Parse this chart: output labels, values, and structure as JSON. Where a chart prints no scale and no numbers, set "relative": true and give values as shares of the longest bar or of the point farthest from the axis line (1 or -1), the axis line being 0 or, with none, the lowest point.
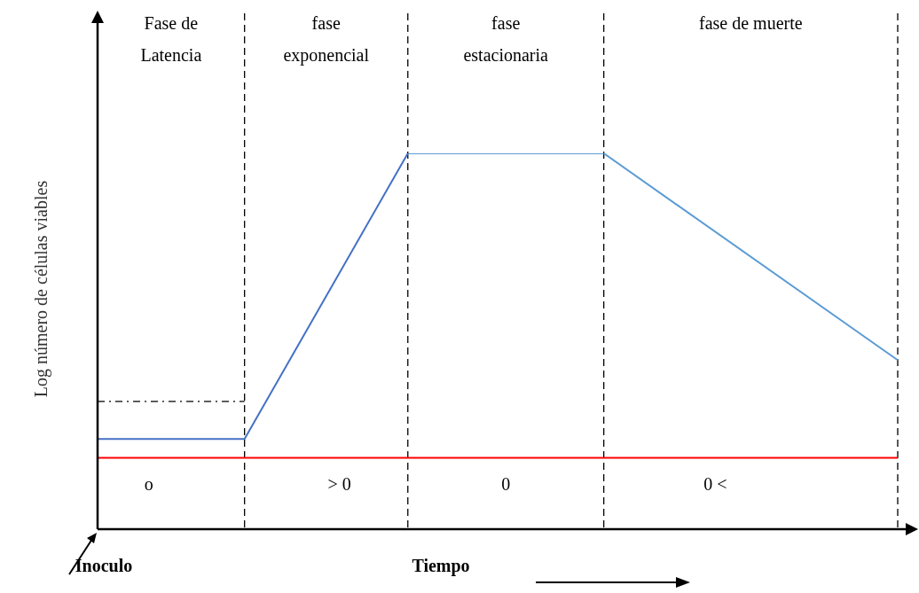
{
  "chart_data": {
    "type": "line",
    "relative": true,
    "tick_labels": false,
    "xlabel": "Tiempo",
    "ylabel": "Log número de células viables",
    "categories": [
      null,
      null,
      null,
      null,
      null,
      null,
      null,
      null,
      null,
      null,
      null,
      null,
      null,
      null,
      null,
      null,
      null,
      null,
      null,
      null,
      null,
      null,
      null,
      null,
      null,
      null,
      null,
      null,
      null,
      null,
      null,
      null,
      null,
      null,
      null,
      null,
      null,
      null,
      null,
      null,
      null,
      null,
      null,
      null,
      null,
      null,
      null,
      null,
      null,
      null
    ],
    "series": [
      {
        "values": [
          0.24,
          null,
          null,
          null,
          null,
          null,
          null,
          null,
          null,
          0.24,
          null,
          null,
          null,
          null,
          null,
          null,
          null,
          null,
          null,
          1,
          null,
          null,
          null,
          null,
          null,
          null,
          null,
          null,
          null,
          null,
          null,
          null,
          null,
          null,
          null,
          null,
          null,
          null,
          null,
          null,
          null,
          null,
          null,
          null,
          null,
          null,
          null,
          null,
          null,
          null
        ],
        "color": "#4472c4"
      },
      {
        "values": [
          null,
          null,
          null,
          null,
          null,
          null,
          null,
          null,
          null,
          null,
          null,
          null,
          null,
          null,
          null,
          null,
          null,
          null,
          null,
          1,
          null,
          null,
          null,
          null,
          null,
          null,
          null,
          null,
          null,
          null,
          null,
          1,
          null,
          null,
          null,
          null,
          null,
          null,
          null,
          null,
          null,
          null,
          null,
          null,
          null,
          null,
          null,
          null,
          null,
          0.45
        ],
        "color": "#5b9bd5"
      },
      {
        "values": [
          0.34,
          null,
          null,
          null,
          null,
          null,
          null,
          null,
          null,
          0.34,
          null,
          null,
          null,
          null,
          null,
          null,
          null,
          null,
          null,
          null,
          null,
          null,
          null,
          null,
          null,
          null,
          null,
          null,
          null,
          null,
          null,
          null,
          null,
          null,
          null,
          null,
          null,
          null,
          null,
          null,
          null,
          null,
          null,
          null,
          null,
          null,
          null,
          null,
          null,
          null
        ],
        "color": "#000000",
        "line_style": "dashed"
      },
      {
        "values": [
          0.19,
          null,
          null,
          null,
          null,
          null,
          null,
          null,
          null,
          null,
          null,
          null,
          null,
          null,
          null,
          null,
          null,
          null,
          null,
          null,
          null,
          null,
          null,
          null,
          null,
          null,
          null,
          null,
          null,
          null,
          null,
          null,
          null,
          null,
          null,
          null,
          null,
          null,
          null,
          null,
          null,
          null,
          null,
          null,
          null,
          null,
          null,
          null,
          null,
          0.19
        ],
        "color": "#ff0000"
      }
    ],
    "annotations": [
      "Fase de\nLatencia",
      "fase\nexponencial",
      "fase\nestacionaria",
      "fase de muerte",
      "o",
      "> 0",
      "0",
      "0 <",
      "Inoculo"
    ]
  }
}
